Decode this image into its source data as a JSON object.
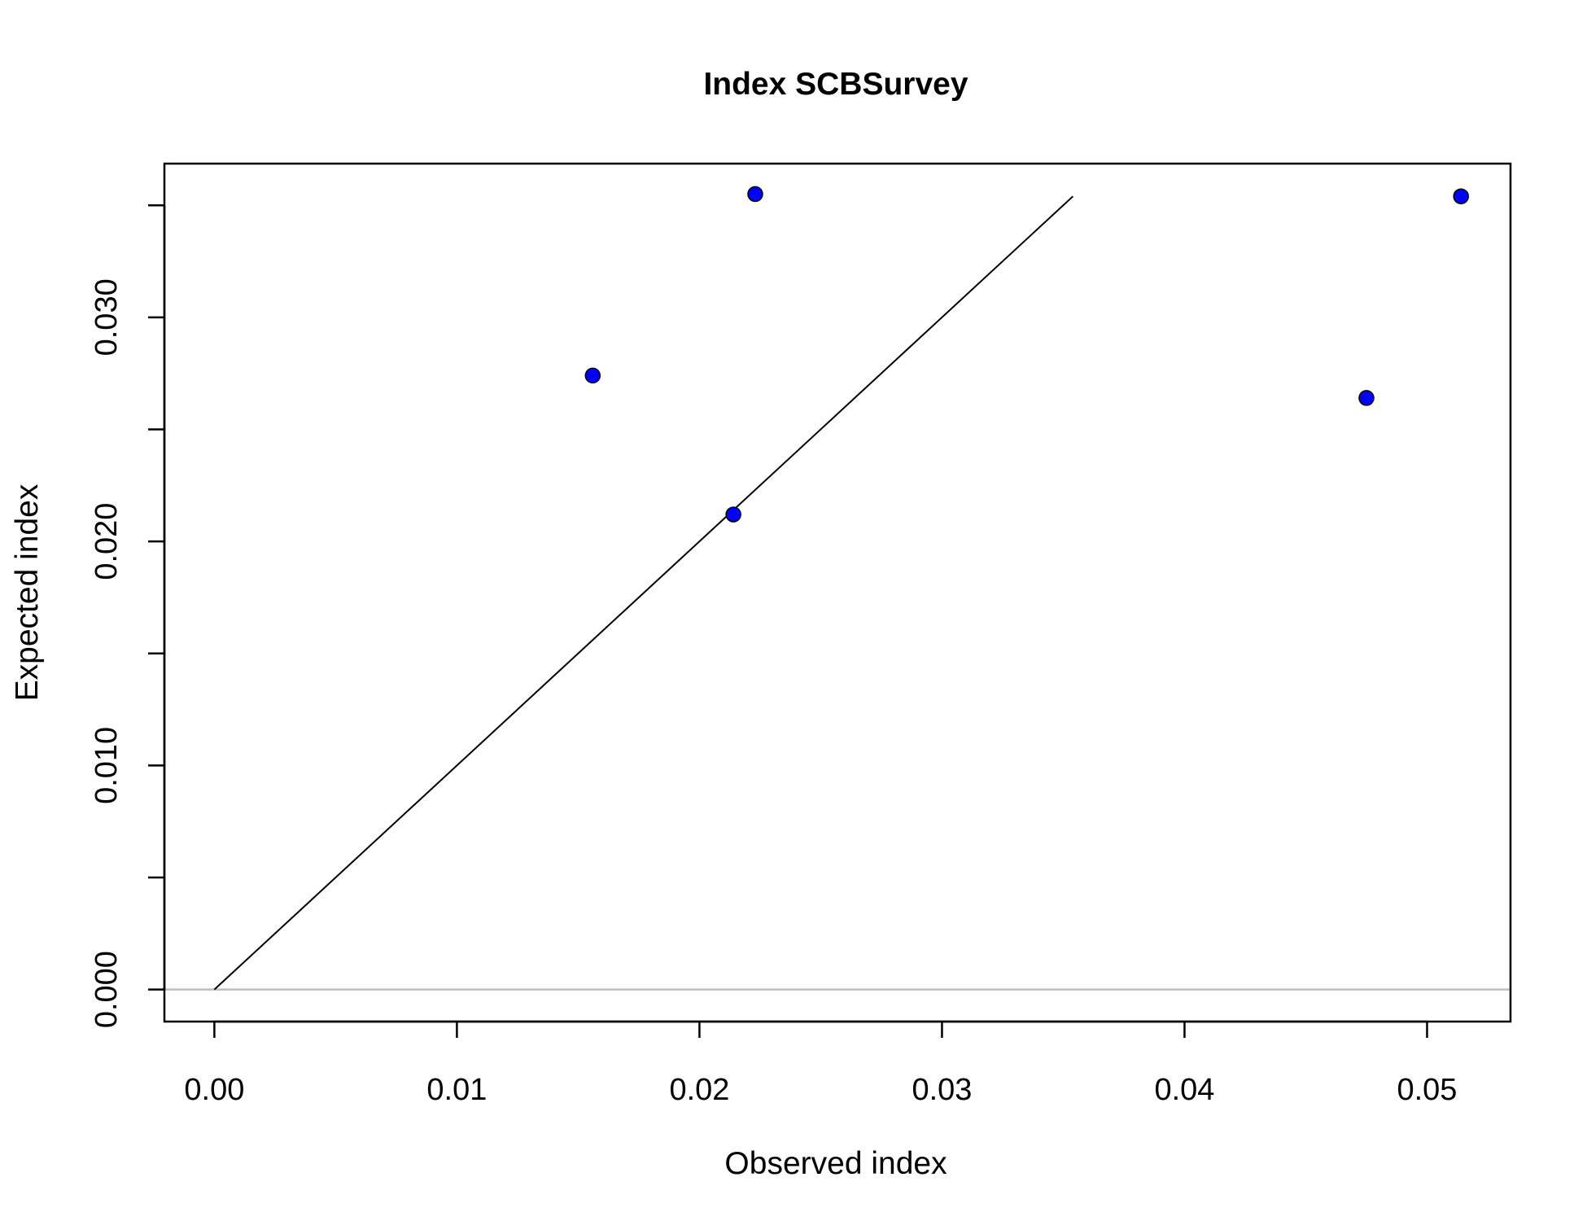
{
  "chart_data": {
    "type": "scatter",
    "title": "Index SCBSurvey",
    "xlabel": "Observed index",
    "ylabel": "Expected index",
    "xlim": [
      -0.00206,
      0.05344
    ],
    "ylim": [
      -0.00143,
      0.03686
    ],
    "x_ticks": [
      0.0,
      0.01,
      0.02,
      0.03,
      0.04,
      0.05
    ],
    "x_tick_labels": [
      "0.00",
      "0.01",
      "0.02",
      "0.03",
      "0.04",
      "0.05"
    ],
    "y_ticks": [
      0.0,
      0.005,
      0.01,
      0.015,
      0.02,
      0.025,
      0.03,
      0.035
    ],
    "y_tick_labels": [
      "0.000",
      "",
      "0.010",
      "",
      "0.020",
      "",
      "0.030",
      ""
    ],
    "grid": false,
    "points": [
      {
        "x": 0.0156,
        "y": 0.0274
      },
      {
        "x": 0.0214,
        "y": 0.0212
      },
      {
        "x": 0.0223,
        "y": 0.0355
      },
      {
        "x": 0.0475,
        "y": 0.0264
      },
      {
        "x": 0.0514,
        "y": 0.0354
      }
    ],
    "reference_line": {
      "x": [
        0.0,
        0.0354
      ],
      "y": [
        0.0,
        0.0354
      ]
    },
    "zero_line_y": 0.0,
    "colors": {
      "point_fill": "#0000ff",
      "point_stroke": "#000000",
      "reference_line": "#000000",
      "zero_line": "#bebebe"
    }
  }
}
